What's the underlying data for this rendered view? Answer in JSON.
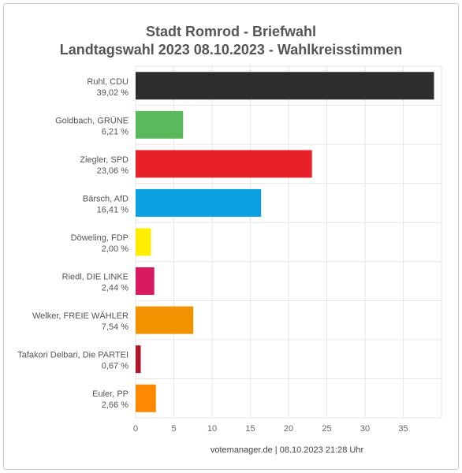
{
  "chart_data": {
    "type": "bar",
    "orientation": "horizontal",
    "title": "Stadt Romrod - Briefwahl",
    "subtitle": "Landtagswahl 2023 08.10.2023  - Wahlkreisstimmen",
    "categories": [
      "Ruhl, CDU",
      "Goldbach, GRÜNE",
      "Ziegler, SPD",
      "Bärsch, AfD",
      "Döweling, FDP",
      "Riedl, DIE LINKE",
      "Welker, FREIE WÄHLER",
      "Tafakori Delbari, Die PARTEI",
      "Euler, PP"
    ],
    "values": [
      39.02,
      6.21,
      23.06,
      16.41,
      2.0,
      2.44,
      7.54,
      0.67,
      2.66
    ],
    "value_labels": [
      "39,02 %",
      "6,21 %",
      "23,06 %",
      "16,41 %",
      "2,00 %",
      "2,44 %",
      "7,54 %",
      "0,67 %",
      "2,66 %"
    ],
    "colors": [
      "#2d2d2d",
      "#5cb85c",
      "#e8202a",
      "#0aa0e2",
      "#ffee00",
      "#d81b60",
      "#f39200",
      "#b5152b",
      "#ff8800"
    ],
    "xlim": [
      0,
      40
    ],
    "xticks": [
      0,
      5,
      10,
      15,
      20,
      25,
      30,
      35
    ],
    "xtick_labels": [
      "0",
      "5",
      "10",
      "15",
      "20",
      "25",
      "30",
      "35"
    ],
    "grid": true,
    "legend": "none"
  },
  "credit": "votemanager.de | 08.10.2023 21:28 Uhr"
}
